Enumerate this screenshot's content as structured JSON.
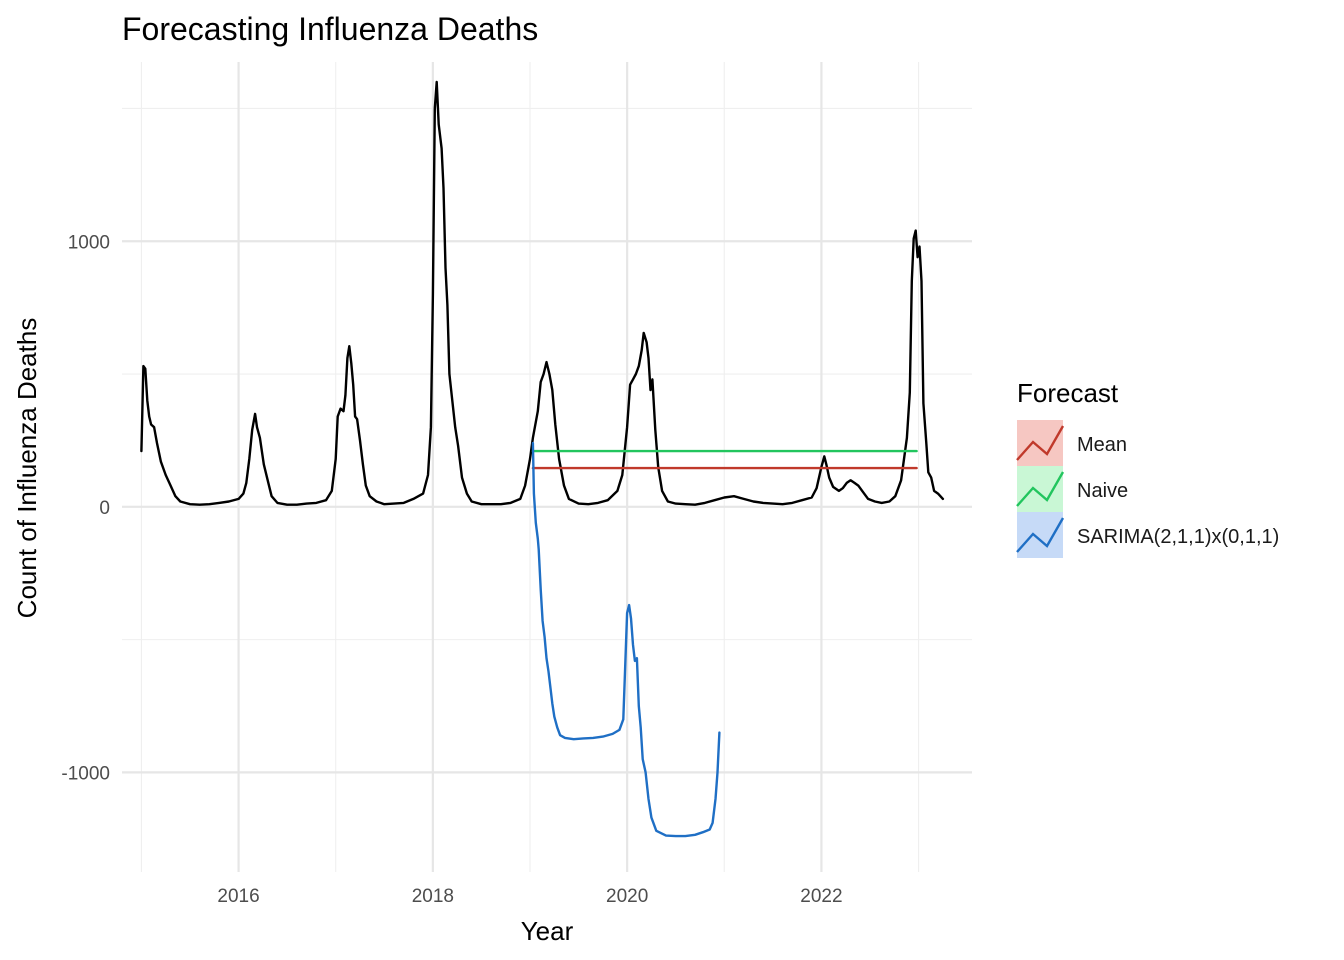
{
  "chart_data": {
    "type": "line",
    "title": "Forecasting Influenza Deaths",
    "xlabel": "Year",
    "ylabel": "Count of Influenza Deaths",
    "xlim": [
      2014.8,
      2023.55
    ],
    "ylim": [
      -1375,
      1675
    ],
    "x_ticks": [
      2016,
      2018,
      2020,
      2022
    ],
    "x_tick_labels": [
      "2016",
      "2018",
      "2020",
      "2022"
    ],
    "y_ticks": [
      -1000,
      0,
      1000
    ],
    "y_tick_labels": [
      "-1000",
      "0",
      "1000"
    ],
    "grid": true,
    "legend": {
      "title": "Forecast",
      "placement": "right",
      "entries": [
        {
          "label": "Mean",
          "color": "#c0392b",
          "fill": "#f6c7c2"
        },
        {
          "label": "Naive",
          "color": "#22c55e",
          "fill": "#c9f7d5"
        },
        {
          "label": "SARIMA(2,1,1)x(0,1,1)",
          "color": "#1f6fc5",
          "fill": "#c6daf7"
        }
      ]
    },
    "actual": {
      "color": "#000000",
      "points": [
        [
          2015.0,
          210
        ],
        [
          2015.02,
          530
        ],
        [
          2015.04,
          520
        ],
        [
          2015.06,
          400
        ],
        [
          2015.08,
          340
        ],
        [
          2015.1,
          310
        ],
        [
          2015.13,
          300
        ],
        [
          2015.16,
          240
        ],
        [
          2015.2,
          170
        ],
        [
          2015.25,
          120
        ],
        [
          2015.3,
          80
        ],
        [
          2015.35,
          40
        ],
        [
          2015.4,
          20
        ],
        [
          2015.5,
          10
        ],
        [
          2015.6,
          8
        ],
        [
          2015.7,
          10
        ],
        [
          2015.8,
          15
        ],
        [
          2015.9,
          20
        ],
        [
          2016.0,
          30
        ],
        [
          2016.05,
          50
        ],
        [
          2016.08,
          90
        ],
        [
          2016.11,
          180
        ],
        [
          2016.14,
          290
        ],
        [
          2016.17,
          350
        ],
        [
          2016.19,
          300
        ],
        [
          2016.22,
          260
        ],
        [
          2016.26,
          160
        ],
        [
          2016.3,
          100
        ],
        [
          2016.34,
          40
        ],
        [
          2016.4,
          15
        ],
        [
          2016.5,
          8
        ],
        [
          2016.6,
          8
        ],
        [
          2016.7,
          12
        ],
        [
          2016.8,
          15
        ],
        [
          2016.9,
          25
        ],
        [
          2016.96,
          60
        ],
        [
          2017.0,
          180
        ],
        [
          2017.02,
          340
        ],
        [
          2017.05,
          370
        ],
        [
          2017.08,
          360
        ],
        [
          2017.1,
          420
        ],
        [
          2017.12,
          560
        ],
        [
          2017.14,
          605
        ],
        [
          2017.16,
          540
        ],
        [
          2017.18,
          460
        ],
        [
          2017.2,
          340
        ],
        [
          2017.22,
          330
        ],
        [
          2017.25,
          250
        ],
        [
          2017.28,
          160
        ],
        [
          2017.31,
          80
        ],
        [
          2017.35,
          40
        ],
        [
          2017.42,
          20
        ],
        [
          2017.5,
          10
        ],
        [
          2017.6,
          12
        ],
        [
          2017.7,
          15
        ],
        [
          2017.8,
          30
        ],
        [
          2017.9,
          50
        ],
        [
          2017.95,
          120
        ],
        [
          2017.98,
          300
        ],
        [
          2018.0,
          800
        ],
        [
          2018.02,
          1500
        ],
        [
          2018.04,
          1600
        ],
        [
          2018.06,
          1440
        ],
        [
          2018.09,
          1350
        ],
        [
          2018.11,
          1200
        ],
        [
          2018.13,
          900
        ],
        [
          2018.15,
          760
        ],
        [
          2018.17,
          500
        ],
        [
          2018.2,
          400
        ],
        [
          2018.23,
          300
        ],
        [
          2018.26,
          230
        ],
        [
          2018.3,
          110
        ],
        [
          2018.35,
          50
        ],
        [
          2018.4,
          20
        ],
        [
          2018.5,
          10
        ],
        [
          2018.6,
          10
        ],
        [
          2018.7,
          10
        ],
        [
          2018.8,
          15
        ],
        [
          2018.9,
          30
        ],
        [
          2018.95,
          80
        ],
        [
          2019.0,
          180
        ],
        [
          2019.03,
          260
        ],
        [
          2019.08,
          360
        ],
        [
          2019.11,
          470
        ],
        [
          2019.14,
          500
        ],
        [
          2019.17,
          545
        ],
        [
          2019.2,
          500
        ],
        [
          2019.23,
          440
        ],
        [
          2019.26,
          310
        ],
        [
          2019.3,
          180
        ],
        [
          2019.35,
          80
        ],
        [
          2019.4,
          30
        ],
        [
          2019.5,
          12
        ],
        [
          2019.6,
          10
        ],
        [
          2019.7,
          15
        ],
        [
          2019.8,
          25
        ],
        [
          2019.9,
          60
        ],
        [
          2019.95,
          120
        ],
        [
          2020.0,
          300
        ],
        [
          2020.03,
          460
        ],
        [
          2020.06,
          480
        ],
        [
          2020.09,
          500
        ],
        [
          2020.12,
          530
        ],
        [
          2020.15,
          590
        ],
        [
          2020.17,
          655
        ],
        [
          2020.2,
          620
        ],
        [
          2020.22,
          560
        ],
        [
          2020.24,
          440
        ],
        [
          2020.26,
          480
        ],
        [
          2020.29,
          290
        ],
        [
          2020.32,
          150
        ],
        [
          2020.36,
          60
        ],
        [
          2020.42,
          20
        ],
        [
          2020.5,
          12
        ],
        [
          2020.6,
          10
        ],
        [
          2020.7,
          8
        ],
        [
          2020.8,
          15
        ],
        [
          2020.9,
          25
        ],
        [
          2021.0,
          35
        ],
        [
          2021.1,
          40
        ],
        [
          2021.2,
          30
        ],
        [
          2021.3,
          20
        ],
        [
          2021.4,
          15
        ],
        [
          2021.5,
          12
        ],
        [
          2021.6,
          10
        ],
        [
          2021.7,
          15
        ],
        [
          2021.8,
          25
        ],
        [
          2021.9,
          35
        ],
        [
          2021.95,
          70
        ],
        [
          2022.0,
          150
        ],
        [
          2022.03,
          190
        ],
        [
          2022.05,
          160
        ],
        [
          2022.08,
          110
        ],
        [
          2022.12,
          75
        ],
        [
          2022.18,
          60
        ],
        [
          2022.22,
          70
        ],
        [
          2022.26,
          90
        ],
        [
          2022.3,
          100
        ],
        [
          2022.34,
          90
        ],
        [
          2022.38,
          80
        ],
        [
          2022.42,
          60
        ],
        [
          2022.48,
          30
        ],
        [
          2022.55,
          20
        ],
        [
          2022.62,
          15
        ],
        [
          2022.7,
          20
        ],
        [
          2022.76,
          40
        ],
        [
          2022.82,
          100
        ],
        [
          2022.88,
          260
        ],
        [
          2022.91,
          430
        ],
        [
          2022.93,
          850
        ],
        [
          2022.95,
          1010
        ],
        [
          2022.97,
          1040
        ],
        [
          2022.99,
          940
        ],
        [
          2023.01,
          980
        ],
        [
          2023.03,
          850
        ],
        [
          2023.05,
          390
        ],
        [
          2023.08,
          240
        ],
        [
          2023.1,
          130
        ],
        [
          2023.13,
          110
        ],
        [
          2023.16,
          60
        ],
        [
          2023.2,
          50
        ],
        [
          2023.25,
          30
        ]
      ]
    },
    "series": [
      {
        "name": "Mean",
        "color": "#c0392b",
        "points": [
          [
            2019.03,
            146
          ],
          [
            2022.98,
            146
          ]
        ]
      },
      {
        "name": "Naive",
        "color": "#22c55e",
        "points": [
          [
            2019.03,
            210
          ],
          [
            2022.98,
            210
          ]
        ]
      },
      {
        "name": "SARIMA(2,1,1)x(0,1,1)",
        "color": "#1f6fc5",
        "points": [
          [
            2019.03,
            240
          ],
          [
            2019.04,
            50
          ],
          [
            2019.06,
            -60
          ],
          [
            2019.08,
            -120
          ],
          [
            2019.09,
            -160
          ],
          [
            2019.11,
            -310
          ],
          [
            2019.13,
            -430
          ],
          [
            2019.15,
            -490
          ],
          [
            2019.17,
            -570
          ],
          [
            2019.19,
            -620
          ],
          [
            2019.21,
            -680
          ],
          [
            2019.23,
            -740
          ],
          [
            2019.25,
            -790
          ],
          [
            2019.28,
            -830
          ],
          [
            2019.31,
            -860
          ],
          [
            2019.36,
            -870
          ],
          [
            2019.45,
            -875
          ],
          [
            2019.55,
            -872
          ],
          [
            2019.65,
            -870
          ],
          [
            2019.75,
            -865
          ],
          [
            2019.85,
            -855
          ],
          [
            2019.92,
            -840
          ],
          [
            2019.96,
            -800
          ],
          [
            2019.98,
            -600
          ],
          [
            2020.0,
            -400
          ],
          [
            2020.02,
            -370
          ],
          [
            2020.04,
            -420
          ],
          [
            2020.06,
            -520
          ],
          [
            2020.08,
            -580
          ],
          [
            2020.1,
            -570
          ],
          [
            2020.12,
            -750
          ],
          [
            2020.14,
            -830
          ],
          [
            2020.16,
            -950
          ],
          [
            2020.19,
            -1000
          ],
          [
            2020.22,
            -1100
          ],
          [
            2020.25,
            -1170
          ],
          [
            2020.3,
            -1220
          ],
          [
            2020.4,
            -1238
          ],
          [
            2020.5,
            -1240
          ],
          [
            2020.6,
            -1240
          ],
          [
            2020.7,
            -1235
          ],
          [
            2020.78,
            -1225
          ],
          [
            2020.85,
            -1215
          ],
          [
            2020.88,
            -1190
          ],
          [
            2020.91,
            -1100
          ],
          [
            2020.93,
            -1000
          ],
          [
            2020.95,
            -850
          ]
        ]
      }
    ]
  }
}
